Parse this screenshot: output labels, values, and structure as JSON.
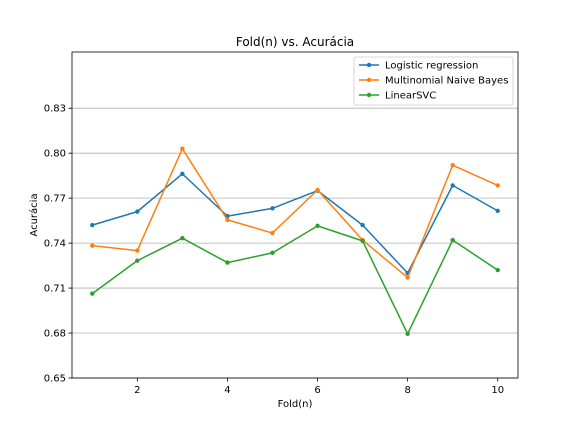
{
  "chart_data": {
    "type": "line",
    "title": "Fold(n) vs. Acurácia",
    "xlabel": "Fold(n)",
    "ylabel": "Acurácia",
    "xlim": [
      0.55,
      10.45
    ],
    "ylim": [
      0.65,
      0.8675
    ],
    "xticks": [
      2,
      4,
      6,
      8,
      10
    ],
    "yticks": [
      0.65,
      0.68,
      0.71,
      0.74,
      0.77,
      0.8,
      0.83
    ],
    "ytick_labels": [
      "0.65",
      "0.68",
      "0.71",
      "0.74",
      "0.77",
      "0.80",
      "0.83"
    ],
    "grid": "y-axis horizontal lines",
    "legend_position": "top-right",
    "x": [
      1,
      2,
      3,
      4,
      5,
      6,
      7,
      8,
      9,
      10
    ],
    "series": [
      {
        "name": "Logistic regression",
        "color": "#1f77b4",
        "values": [
          0.752,
          0.761,
          0.7862,
          0.758,
          0.7632,
          0.775,
          0.752,
          0.72,
          0.7785,
          0.7615
        ]
      },
      {
        "name": "Multinomial Naive Bayes",
        "color": "#ff7f0e",
        "values": [
          0.7383,
          0.735,
          0.803,
          0.7555,
          0.7467,
          0.7755,
          0.742,
          0.717,
          0.792,
          0.7785
        ]
      },
      {
        "name": "LinearSVC",
        "color": "#2ca02c",
        "values": [
          0.7063,
          0.7283,
          0.7433,
          0.727,
          0.7335,
          0.7515,
          0.7415,
          0.6795,
          0.742,
          0.722
        ]
      }
    ]
  }
}
